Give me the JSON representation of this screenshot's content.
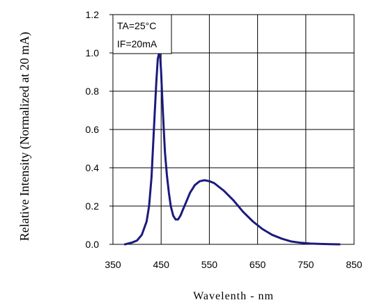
{
  "chart_data": {
    "type": "line",
    "xlabel": "Wavelenth - nm",
    "ylabel": "Relative Intensity (Normalized at 20 mA)",
    "xlim": [
      350,
      850
    ],
    "ylim": [
      0,
      1.2
    ],
    "x_ticks": [
      "350",
      "450",
      "550",
      "650",
      "750",
      "850"
    ],
    "y_ticks": [
      "0.0",
      "0.2",
      "0.4",
      "0.6",
      "0.8",
      "1.0",
      "1.2"
    ],
    "grid": true,
    "annotations": [
      "TA=25°C",
      "IF=20mA"
    ],
    "series": [
      {
        "color": "#1a1a7e",
        "x": [
          375,
          390,
          400,
          410,
          420,
          425,
          430,
          435,
          440,
          443,
          446,
          448,
          450,
          452,
          455,
          458,
          462,
          466,
          470,
          475,
          480,
          485,
          490,
          495,
          500,
          510,
          520,
          530,
          540,
          550,
          560,
          570,
          580,
          590,
          600,
          620,
          640,
          660,
          680,
          700,
          720,
          740,
          760,
          780,
          800,
          820
        ],
        "y": [
          0.0,
          0.01,
          0.02,
          0.05,
          0.12,
          0.2,
          0.35,
          0.6,
          0.85,
          0.97,
          1.0,
          0.98,
          0.9,
          0.78,
          0.62,
          0.48,
          0.36,
          0.27,
          0.2,
          0.15,
          0.13,
          0.13,
          0.15,
          0.18,
          0.21,
          0.27,
          0.31,
          0.33,
          0.335,
          0.33,
          0.32,
          0.3,
          0.28,
          0.255,
          0.23,
          0.17,
          0.12,
          0.08,
          0.05,
          0.03,
          0.015,
          0.008,
          0.004,
          0.002,
          0.001,
          0.0
        ]
      }
    ]
  }
}
